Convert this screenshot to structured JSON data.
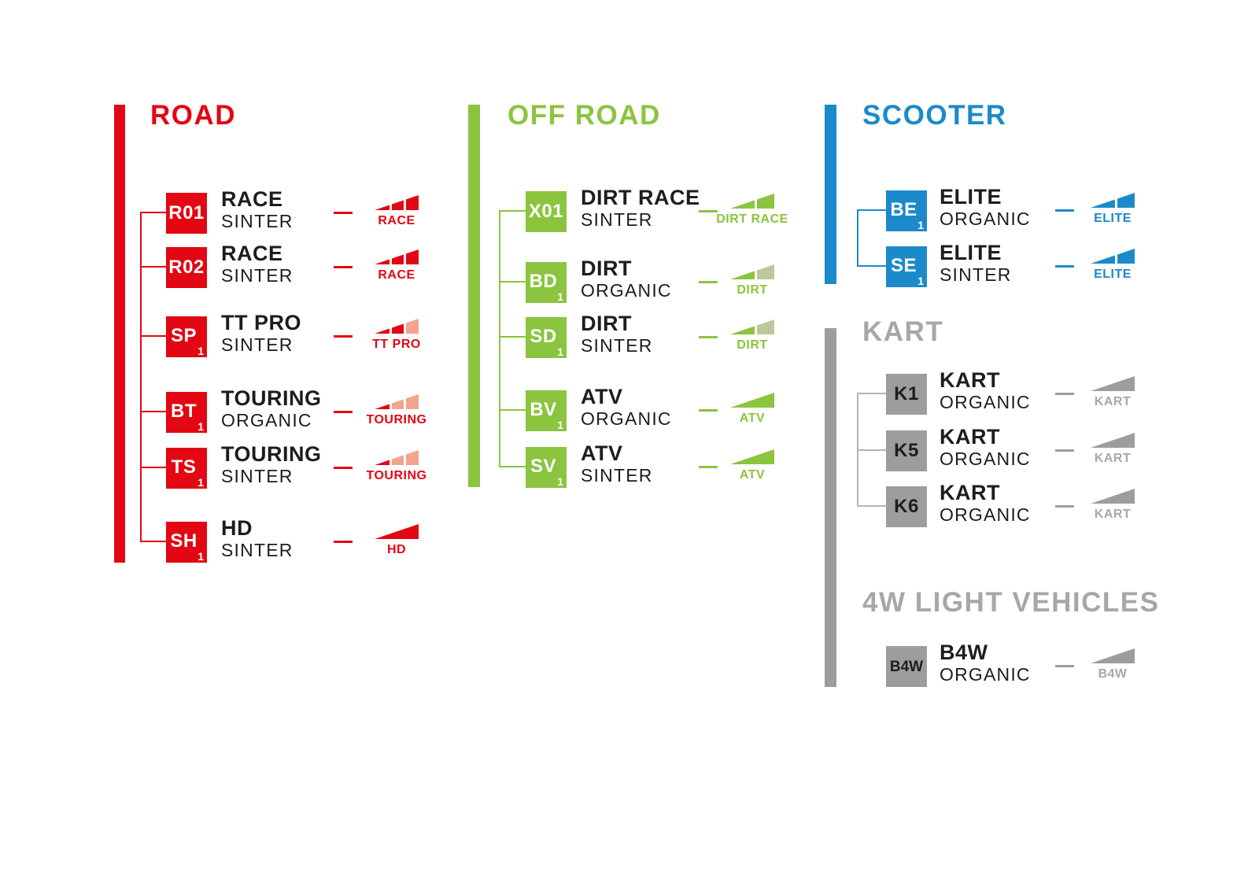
{
  "background_color": "#ffffff",
  "palette": {
    "road_red": "#e30613",
    "road_red_light": "#f3a48f",
    "offroad_green": "#8bc43e",
    "offroad_green_light": "#bcc89b",
    "scooter_blue": "#1b8aca",
    "neutral_gray": "#9d9d9c",
    "neutral_gray_title": "#a7a7a6",
    "neutral_gray_line": "#b4b4b3",
    "text_black": "#1d1d1b",
    "badge_text_white": "#ffffff"
  },
  "sections": [
    {
      "id": "road",
      "title": "ROAD",
      "accent": "#e30613",
      "accent_light": "#f3a48f",
      "title_color": "#e30613",
      "line_color": "#e30613",
      "badge_text_color": "#ffffff",
      "wedge_label_color": "#e30613",
      "items": [
        {
          "code": "R01",
          "subscript": "",
          "name": "RACE",
          "material": "SINTER",
          "wedge": {
            "label": "RACE",
            "segments": [
              "full",
              "full",
              "full"
            ]
          }
        },
        {
          "code": "R02",
          "subscript": "",
          "name": "RACE",
          "material": "SINTER",
          "wedge": {
            "label": "RACE",
            "segments": [
              "full",
              "full",
              "full"
            ]
          }
        },
        {
          "code": "SP",
          "subscript": "1",
          "name": "TT PRO",
          "material": "SINTER",
          "wedge": {
            "label": "TT PRO",
            "segments": [
              "full",
              "full",
              "light"
            ]
          }
        },
        {
          "code": "BT",
          "subscript": "1",
          "name": "TOURING",
          "material": "ORGANIC",
          "wedge": {
            "label": "TOURING",
            "segments": [
              "full",
              "light",
              "light"
            ]
          }
        },
        {
          "code": "TS",
          "subscript": "1",
          "name": "TOURING",
          "material": "SINTER",
          "wedge": {
            "label": "TOURING",
            "segments": [
              "full",
              "light",
              "light"
            ]
          }
        },
        {
          "code": "SH",
          "subscript": "1",
          "name": "HD",
          "material": "SINTER",
          "wedge": {
            "label": "HD",
            "segments": [
              "full"
            ]
          }
        }
      ]
    },
    {
      "id": "offroad",
      "title": "OFF ROAD",
      "accent": "#8bc43e",
      "accent_light": "#bcc89b",
      "title_color": "#8bc43e",
      "line_color": "#8bc43e",
      "badge_text_color": "#ffffff",
      "wedge_label_color": "#8bc43e",
      "items": [
        {
          "code": "X01",
          "subscript": "",
          "name": "DIRT RACE",
          "material": "SINTER",
          "wedge": {
            "label": "DIRT RACE",
            "segments": [
              "full",
              "full"
            ]
          }
        },
        {
          "code": "BD",
          "subscript": "1",
          "name": "DIRT",
          "material": "ORGANIC",
          "wedge": {
            "label": "DIRT",
            "segments": [
              "full",
              "light"
            ]
          }
        },
        {
          "code": "SD",
          "subscript": "1",
          "name": "DIRT",
          "material": "SINTER",
          "wedge": {
            "label": "DIRT",
            "segments": [
              "full",
              "light"
            ]
          }
        },
        {
          "code": "BV",
          "subscript": "1",
          "name": "ATV",
          "material": "ORGANIC",
          "wedge": {
            "label": "ATV",
            "segments": [
              "full"
            ]
          }
        },
        {
          "code": "SV",
          "subscript": "1",
          "name": "ATV",
          "material": "SINTER",
          "wedge": {
            "label": "ATV",
            "segments": [
              "full"
            ]
          }
        }
      ]
    },
    {
      "id": "scooter",
      "title": "SCOOTER",
      "accent": "#1b8aca",
      "accent_light": "#1b8aca",
      "title_color": "#1b8aca",
      "line_color": "#1b8aca",
      "badge_text_color": "#ffffff",
      "wedge_label_color": "#1b8aca",
      "items": [
        {
          "code": "BE",
          "subscript": "1",
          "name": "ELITE",
          "material": "ORGANIC",
          "wedge": {
            "label": "ELITE",
            "segments": [
              "full",
              "full"
            ]
          }
        },
        {
          "code": "SE",
          "subscript": "1",
          "name": "ELITE",
          "material": "SINTER",
          "wedge": {
            "label": "ELITE",
            "segments": [
              "full",
              "full"
            ]
          }
        }
      ]
    },
    {
      "id": "kart",
      "title": "KART",
      "accent": "#9d9d9c",
      "accent_light": "#9d9d9c",
      "title_color": "#a7a7a6",
      "line_color": "#b4b4b3",
      "badge_text_color": "#1d1d1b",
      "wedge_label_color": "#a7a7a6",
      "items": [
        {
          "code": "K1",
          "subscript": "",
          "name": "KART",
          "material": "ORGANIC",
          "wedge": {
            "label": "KART",
            "segments": [
              "full"
            ]
          }
        },
        {
          "code": "K5",
          "subscript": "",
          "name": "KART",
          "material": "ORGANIC",
          "wedge": {
            "label": "KART",
            "segments": [
              "full"
            ]
          }
        },
        {
          "code": "K6",
          "subscript": "",
          "name": "KART",
          "material": "ORGANIC",
          "wedge": {
            "label": "KART",
            "segments": [
              "full"
            ]
          }
        }
      ]
    },
    {
      "id": "lv4w",
      "title": "4W LIGHT VEHICLES",
      "accent": "#9d9d9c",
      "accent_light": "#9d9d9c",
      "title_color": "#a7a7a6",
      "line_color": "#b4b4b3",
      "badge_text_color": "#1d1d1b",
      "wedge_label_color": "#a7a7a6",
      "items": [
        {
          "code": "B4W",
          "subscript": "",
          "name": "B4W",
          "material": "ORGANIC",
          "wedge": {
            "label": "B4W",
            "segments": [
              "full"
            ]
          }
        }
      ]
    }
  ]
}
